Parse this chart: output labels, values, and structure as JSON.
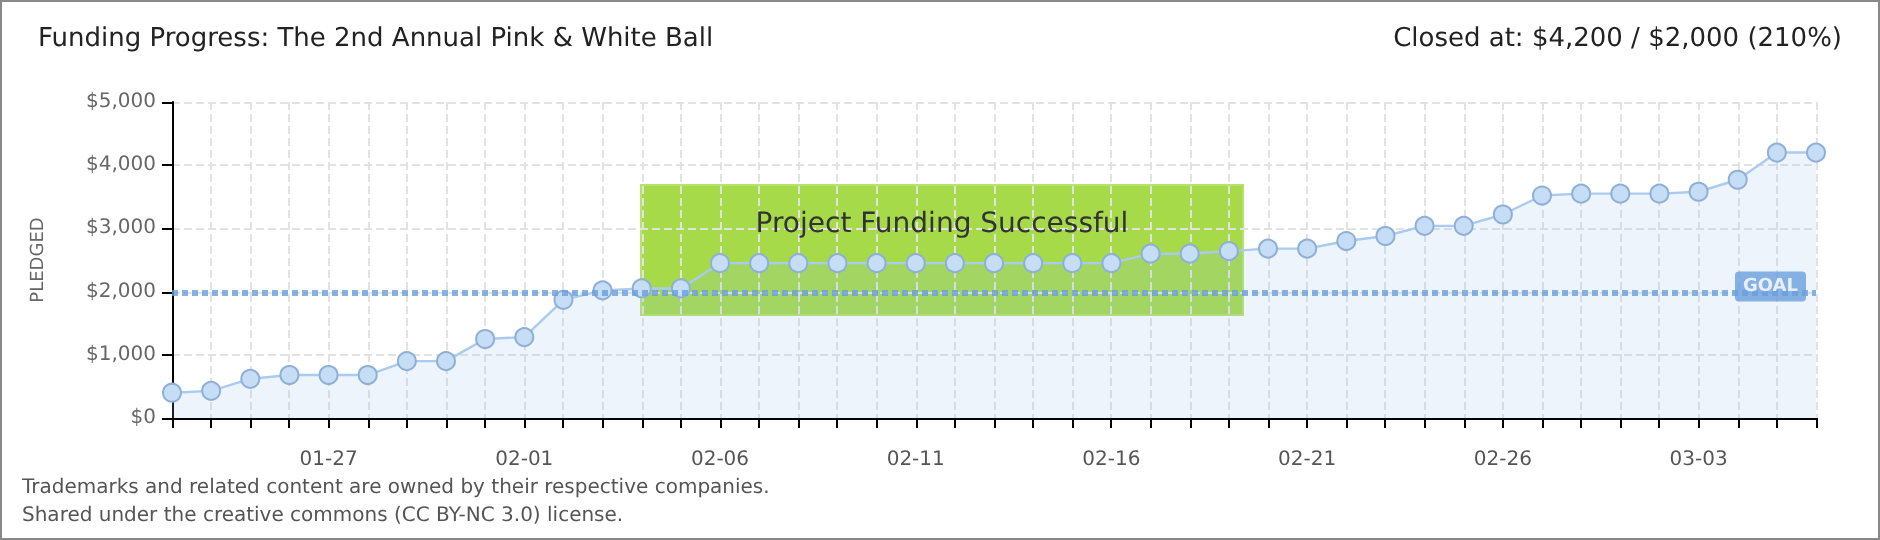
{
  "chart_data": {
    "type": "area",
    "title": "Funding Progress: The 2nd Annual Pink & White Ball",
    "subtitle": "Closed at: $4,200 / $2,000 (210%)",
    "ylabel": "PLEDGED",
    "x": [
      "--01-23",
      "--01-24",
      "--01-25",
      "--01-26",
      "--01-27",
      "--01-28",
      "--01-29",
      "--01-30",
      "--01-31",
      "--02-01",
      "--02-02",
      "--02-03",
      "--02-04",
      "--02-05",
      "--02-06",
      "--02-07",
      "--02-08",
      "--02-09",
      "--02-10",
      "--02-11",
      "--02-12",
      "--02-13",
      "--02-14",
      "--02-15",
      "--02-16",
      "--02-17",
      "--02-18",
      "--02-19",
      "--02-20",
      "--02-21",
      "--02-22",
      "--02-23",
      "--02-24",
      "--02-25",
      "--02-26",
      "--02-27",
      "--02-28",
      "--03-01",
      "--03-02",
      "--03-03",
      "--03-04",
      "--03-05",
      "--03-06"
    ],
    "series": [
      {
        "color": "#a9cbef",
        "values": [
          400,
          430,
          620,
          680,
          680,
          680,
          900,
          900,
          1250,
          1280,
          1870,
          2020,
          2050,
          2050,
          2450,
          2450,
          2450,
          2450,
          2450,
          2450,
          2450,
          2450,
          2450,
          2450,
          2450,
          2600,
          2600,
          2640,
          2680,
          2680,
          2800,
          2880,
          3040,
          3040,
          3220,
          3520,
          3550,
          3550,
          3550,
          3580,
          3770,
          4200,
          4200
        ]
      }
    ],
    "xlim": [
      "--01-23",
      "--03-06"
    ],
    "xticks": [
      {
        "value": "--01-23",
        "label": null
      },
      {
        "value": "--01-24",
        "label": null
      },
      {
        "value": "--01-25",
        "label": null
      },
      {
        "value": "--01-26",
        "label": null
      },
      {
        "value": "--01-27",
        "label": "01-27"
      },
      {
        "value": "--01-28",
        "label": null
      },
      {
        "value": "--01-29",
        "label": null
      },
      {
        "value": "--01-30",
        "label": null
      },
      {
        "value": "--01-31",
        "label": null
      },
      {
        "value": "--02-01",
        "label": "02-01"
      },
      {
        "value": "--02-02",
        "label": null
      },
      {
        "value": "--02-03",
        "label": null
      },
      {
        "value": "--02-04",
        "label": null
      },
      {
        "value": "--02-05",
        "label": null
      },
      {
        "value": "--02-06",
        "label": "02-06"
      },
      {
        "value": "--02-07",
        "label": null
      },
      {
        "value": "--02-08",
        "label": null
      },
      {
        "value": "--02-09",
        "label": null
      },
      {
        "value": "--02-10",
        "label": null
      },
      {
        "value": "--02-11",
        "label": "02-11"
      },
      {
        "value": "--02-12",
        "label": null
      },
      {
        "value": "--02-13",
        "label": null
      },
      {
        "value": "--02-14",
        "label": null
      },
      {
        "value": "--02-15",
        "label": null
      },
      {
        "value": "--02-16",
        "label": "02-16"
      },
      {
        "value": "--02-17",
        "label": null
      },
      {
        "value": "--02-18",
        "label": null
      },
      {
        "value": "--02-19",
        "label": null
      },
      {
        "value": "--02-20",
        "label": null
      },
      {
        "value": "--02-21",
        "label": "02-21"
      },
      {
        "value": "--02-22",
        "label": null
      },
      {
        "value": "--02-23",
        "label": null
      },
      {
        "value": "--02-24",
        "label": null
      },
      {
        "value": "--02-25",
        "label": null
      },
      {
        "value": "--02-26",
        "label": "02-26"
      },
      {
        "value": "--02-27",
        "label": null
      },
      {
        "value": "--02-28",
        "label": null
      },
      {
        "value": "--03-01",
        "label": null
      },
      {
        "value": "--03-02",
        "label": null
      },
      {
        "value": "--03-03",
        "label": "03-03"
      },
      {
        "value": "--03-04",
        "label": null
      },
      {
        "value": "--03-05",
        "label": null
      },
      {
        "value": "--03-06",
        "label": null
      }
    ],
    "ylim": [
      0,
      5000
    ],
    "yticks": [
      {
        "value": 0,
        "label": "$0"
      },
      {
        "value": 1000,
        "label": "$1,000"
      },
      {
        "value": 2000,
        "label": "$2,000"
      },
      {
        "value": 3000,
        "label": "$3,000"
      },
      {
        "value": 4000,
        "label": "$4,000"
      },
      {
        "value": 5000,
        "label": "$5,000"
      }
    ],
    "ref_lines": [
      {
        "axis": "y",
        "value": 2000,
        "label": "GOAL",
        "color": "#6a9fdc",
        "line_style": "dotted"
      }
    ],
    "annotations": [
      "Project Funding Successful",
      "Trademarks and related content are owned by their respective companies.",
      "Shared under the creative commons (CC BY-NC 3.0) license."
    ],
    "grid": true,
    "marker": "circle",
    "line_style": "solid"
  }
}
